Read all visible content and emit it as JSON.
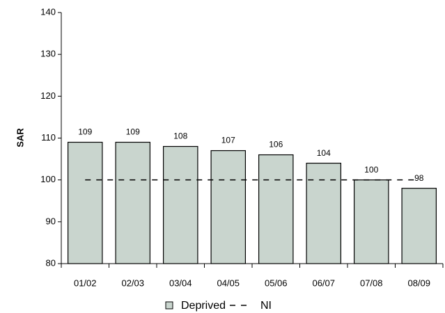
{
  "chart_data": {
    "type": "bar",
    "y_label": "SAR",
    "categories": [
      "01/02",
      "02/03",
      "03/04",
      "04/05",
      "05/06",
      "06/07",
      "07/08",
      "08/09"
    ],
    "series": [
      {
        "name": "Deprived",
        "type": "bar",
        "color": "#c9d5ce",
        "values": [
          109,
          109,
          108,
          107,
          106,
          104,
          100,
          98
        ]
      },
      {
        "name": "NI",
        "type": "line",
        "dashed": true,
        "color": "#000000",
        "values": [
          100,
          100,
          100,
          100,
          100,
          100,
          100,
          100
        ]
      }
    ],
    "ylim": [
      80,
      140
    ],
    "yticks": [
      80,
      90,
      100,
      110,
      120,
      130,
      140
    ],
    "grid": false
  }
}
